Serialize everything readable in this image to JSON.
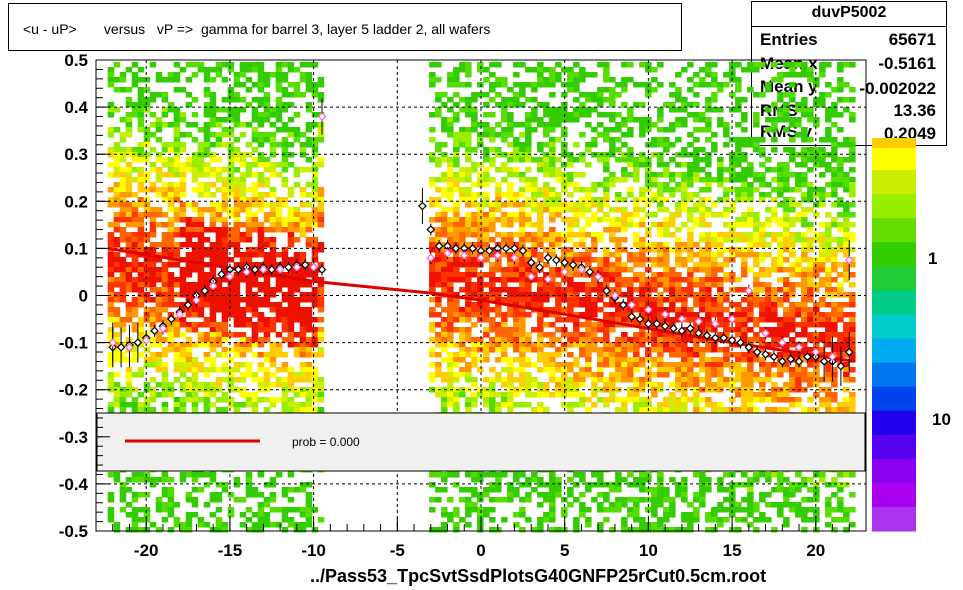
{
  "title": "<u - uP>       versus   vP =>  gamma for barrel 3, layer 5 ladder 2, all wafers",
  "stats": {
    "name": "duvP5002",
    "rows": [
      {
        "label": "Entries",
        "value": "65671"
      },
      {
        "label": "Mean x",
        "value": "-0.5161"
      },
      {
        "label": "Mean y",
        "value": "-0.002022"
      },
      {
        "label": "RMS x",
        "value": "13.36"
      },
      {
        "label": "RMS y",
        "value": "0.2049"
      }
    ]
  },
  "footer": "../Pass53_TpcSvtSsdPlotsG40GNFP25rCut0.5cm.root",
  "legend": {
    "label": "prob = 0.000",
    "line_color": "#e00000"
  },
  "colors": {
    "fit": "#e00000",
    "black_points": "#000000",
    "pink_points": "#ff66cc"
  },
  "chart_data": {
    "type": "heatmap",
    "xlim": [
      -23,
      23
    ],
    "ylim": [
      -0.5,
      0.5
    ],
    "x_ticks": [
      "-20",
      "-15",
      "-10",
      "-5",
      "0",
      "5",
      "10",
      "15",
      "20"
    ],
    "y_ticks": [
      "-0.5",
      "-0.4",
      "-0.3",
      "-0.2",
      "-0.1",
      "0",
      "0.1",
      "0.2",
      "0.3",
      "0.4",
      "0.5"
    ],
    "colorbar_labels": [
      "1",
      "10"
    ],
    "grid": true,
    "data_bands": [
      [
        -22.3,
        -9.6
      ],
      [
        -3.1,
        22.1
      ]
    ],
    "fit_line": {
      "x": [
        -22.3,
        -10,
        -3,
        0,
        5,
        10,
        15,
        22.3
      ],
      "y": [
        0.1,
        0.03,
        0.005,
        -0.01,
        -0.04,
        -0.07,
        -0.1,
        -0.14
      ]
    },
    "profile_black": {
      "x": [
        -22,
        -21.5,
        -21,
        -20.5,
        -20,
        -19.5,
        -19,
        -18.5,
        -18,
        -17.5,
        -17,
        -16.5,
        -16,
        -15.5,
        -15,
        -14.5,
        -14,
        -13.5,
        -13,
        -12.5,
        -12,
        -11.5,
        -11,
        -10.5,
        -10,
        -9.5,
        -3.5,
        -3,
        -2.5,
        -2,
        -1.5,
        -1,
        -0.5,
        0,
        0.5,
        1,
        1.5,
        2,
        2.5,
        3,
        3.5,
        4,
        4.5,
        5,
        5.5,
        6,
        6.5,
        7,
        7.5,
        8,
        8.5,
        9,
        9.5,
        10,
        10.5,
        11,
        11.5,
        12,
        12.5,
        13,
        13.5,
        14,
        14.5,
        15,
        15.5,
        16,
        16.5,
        17,
        17.5,
        18,
        18.5,
        19,
        19.5,
        20,
        20.5,
        21,
        21.5,
        22
      ],
      "y": [
        -0.11,
        -0.11,
        -0.105,
        -0.1,
        -0.09,
        -0.075,
        -0.065,
        -0.05,
        -0.035,
        -0.02,
        0,
        0.01,
        0.03,
        0.045,
        0.055,
        0.055,
        0.06,
        0.055,
        0.06,
        0.055,
        0.06,
        0.06,
        0.065,
        0.065,
        0.06,
        0.055,
        0.19,
        0.14,
        0.105,
        0.105,
        0.1,
        0.1,
        0.1,
        0.095,
        0.095,
        0.1,
        0.1,
        0.1,
        0.095,
        0.07,
        0.06,
        0.08,
        0.075,
        0.07,
        0.065,
        0.06,
        0.05,
        0.04,
        0.01,
        -0.005,
        -0.02,
        -0.045,
        -0.05,
        -0.06,
        -0.06,
        -0.065,
        -0.07,
        -0.075,
        -0.07,
        -0.08,
        -0.085,
        -0.09,
        -0.09,
        -0.095,
        -0.1,
        -0.11,
        -0.12,
        -0.125,
        -0.13,
        -0.14,
        -0.135,
        -0.14,
        -0.13,
        -0.13,
        -0.14,
        -0.14,
        -0.15,
        -0.12
      ]
    },
    "profile_pink": {
      "x": [
        -22,
        -21,
        -20,
        -19,
        -18,
        -17,
        -16,
        -15,
        -14,
        -13,
        -12,
        -11,
        -10,
        -9.5,
        -3,
        -2,
        -1,
        0,
        1,
        2,
        3,
        4,
        5,
        6,
        7,
        8,
        9,
        10,
        11,
        12,
        13,
        14,
        15,
        16,
        17,
        18,
        19,
        20,
        21,
        22
      ],
      "y": [
        -0.1,
        -0.11,
        -0.095,
        -0.07,
        -0.04,
        -0.01,
        0.02,
        0.04,
        0.05,
        0.055,
        0.055,
        0.06,
        0.06,
        0.38,
        0.08,
        0.09,
        0.085,
        0.08,
        0.085,
        0.08,
        0.04,
        0.035,
        0.05,
        0.055,
        0.04,
        0,
        -0.02,
        -0.03,
        -0.04,
        -0.05,
        -0.055,
        -0.06,
        -0.05,
        0.01,
        -0.08,
        -0.1,
        -0.11,
        -0.12,
        -0.13,
        0.075
      ]
    }
  }
}
